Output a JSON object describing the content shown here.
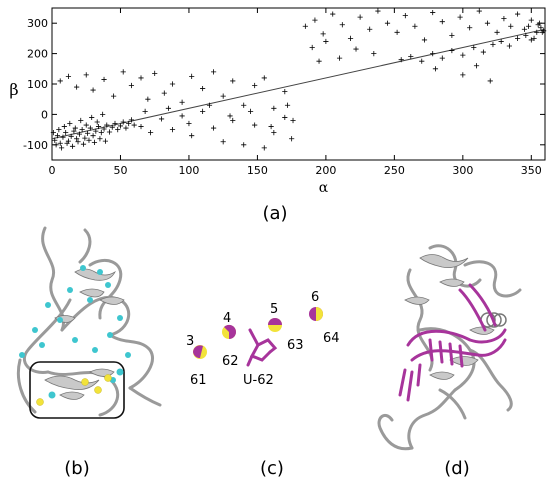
{
  "figure": {
    "panel_labels": [
      "(a)",
      "(b)",
      "(c)",
      "(d)"
    ]
  },
  "chart_data": {
    "type": "scatter",
    "xlabel": "α",
    "ylabel": "β",
    "xlim": [
      0,
      360
    ],
    "ylim": [
      -150,
      350
    ],
    "xticks": [
      0,
      50,
      100,
      150,
      200,
      250,
      300,
      350
    ],
    "yticks": [
      -100,
      0,
      100,
      200,
      300
    ],
    "grid": false,
    "fit_line": {
      "x": [
        0,
        360
      ],
      "y": [
        -80,
        280
      ]
    },
    "series": [
      {
        "marker": "+",
        "color": "#000000",
        "points": [
          [
            2,
            -85
          ],
          [
            4,
            -70
          ],
          [
            6,
            -95
          ],
          [
            8,
            -75
          ],
          [
            10,
            -60
          ],
          [
            12,
            -88
          ],
          [
            14,
            -72
          ],
          [
            16,
            -55
          ],
          [
            18,
            -80
          ],
          [
            20,
            -65
          ],
          [
            22,
            -50
          ],
          [
            24,
            -78
          ],
          [
            26,
            -62
          ],
          [
            28,
            -45
          ],
          [
            30,
            -70
          ],
          [
            32,
            -55
          ],
          [
            34,
            -40
          ],
          [
            36,
            -60
          ],
          [
            38,
            -48
          ],
          [
            40,
            -35
          ],
          [
            42,
            -58
          ],
          [
            44,
            -42
          ],
          [
            46,
            -30
          ],
          [
            48,
            -50
          ],
          [
            50,
            -38
          ],
          [
            52,
            -25
          ],
          [
            54,
            -45
          ],
          [
            56,
            -30
          ],
          [
            58,
            -18
          ],
          [
            60,
            -35
          ],
          [
            3,
            -100
          ],
          [
            7,
            -110
          ],
          [
            11,
            -95
          ],
          [
            15,
            -105
          ],
          [
            19,
            -90
          ],
          [
            23,
            -98
          ],
          [
            27,
            -85
          ],
          [
            31,
            -92
          ],
          [
            35,
            -80
          ],
          [
            39,
            -88
          ],
          [
            1,
            -60
          ],
          [
            5,
            -50
          ],
          [
            9,
            -40
          ],
          [
            13,
            -30
          ],
          [
            17,
            -45
          ],
          [
            21,
            -20
          ],
          [
            25,
            -35
          ],
          [
            29,
            -10
          ],
          [
            33,
            -25
          ],
          [
            37,
            0
          ],
          [
            6,
            110
          ],
          [
            12,
            125
          ],
          [
            18,
            90
          ],
          [
            25,
            130
          ],
          [
            30,
            80
          ],
          [
            38,
            115
          ],
          [
            45,
            60
          ],
          [
            52,
            140
          ],
          [
            58,
            95
          ],
          [
            65,
            120
          ],
          [
            70,
            50
          ],
          [
            75,
            135
          ],
          [
            82,
            70
          ],
          [
            88,
            100
          ],
          [
            95,
            40
          ],
          [
            102,
            125
          ],
          [
            110,
            85
          ],
          [
            118,
            140
          ],
          [
            125,
            60
          ],
          [
            132,
            110
          ],
          [
            140,
            30
          ],
          [
            148,
            95
          ],
          [
            155,
            120
          ],
          [
            162,
            20
          ],
          [
            170,
            75
          ],
          [
            176,
            -20
          ],
          [
            65,
            -40
          ],
          [
            72,
            -60
          ],
          [
            80,
            -15
          ],
          [
            88,
            -50
          ],
          [
            95,
            -5
          ],
          [
            102,
            -70
          ],
          [
            110,
            10
          ],
          [
            118,
            -45
          ],
          [
            125,
            -90
          ],
          [
            132,
            -20
          ],
          [
            140,
            -100
          ],
          [
            148,
            -35
          ],
          [
            155,
            -110
          ],
          [
            162,
            -60
          ],
          [
            170,
            -10
          ],
          [
            175,
            -80
          ],
          [
            68,
            10
          ],
          [
            85,
            20
          ],
          [
            100,
            -30
          ],
          [
            115,
            30
          ],
          [
            130,
            -5
          ],
          [
            145,
            10
          ],
          [
            160,
            -40
          ],
          [
            172,
            30
          ],
          [
            185,
            290
          ],
          [
            192,
            310
          ],
          [
            198,
            265
          ],
          [
            205,
            330
          ],
          [
            212,
            295
          ],
          [
            218,
            250
          ],
          [
            225,
            320
          ],
          [
            232,
            280
          ],
          [
            238,
            340
          ],
          [
            245,
            300
          ],
          [
            252,
            270
          ],
          [
            258,
            325
          ],
          [
            265,
            290
          ],
          [
            272,
            245
          ],
          [
            278,
            335
          ],
          [
            285,
            305
          ],
          [
            292,
            260
          ],
          [
            298,
            320
          ],
          [
            305,
            285
          ],
          [
            312,
            340
          ],
          [
            318,
            300
          ],
          [
            325,
            270
          ],
          [
            330,
            315
          ],
          [
            335,
            290
          ],
          [
            340,
            330
          ],
          [
            345,
            280
          ],
          [
            350,
            310
          ],
          [
            355,
            295
          ],
          [
            358,
            270
          ],
          [
            352,
            250
          ],
          [
            255,
            180
          ],
          [
            262,
            190
          ],
          [
            270,
            175
          ],
          [
            278,
            200
          ],
          [
            285,
            185
          ],
          [
            292,
            210
          ],
          [
            300,
            195
          ],
          [
            308,
            220
          ],
          [
            315,
            205
          ],
          [
            322,
            230
          ],
          [
            328,
            240
          ],
          [
            334,
            225
          ],
          [
            340,
            250
          ],
          [
            346,
            260
          ],
          [
            350,
            245
          ],
          [
            354,
            270
          ],
          [
            357,
            285
          ],
          [
            359,
            275
          ],
          [
            348,
            290
          ],
          [
            356,
            300
          ],
          [
            190,
            220
          ],
          [
            200,
            240
          ],
          [
            210,
            185
          ],
          [
            222,
            215
          ],
          [
            235,
            200
          ],
          [
            195,
            175
          ],
          [
            300,
            130
          ],
          [
            320,
            110
          ],
          [
            280,
            150
          ],
          [
            310,
            160
          ]
        ]
      }
    ]
  },
  "panel_c": {
    "labels": [
      {
        "id": "n3",
        "text": "3"
      },
      {
        "id": "n61",
        "text": "61"
      },
      {
        "id": "n4",
        "text": "4"
      },
      {
        "id": "n62",
        "text": "62"
      },
      {
        "id": "n5",
        "text": "5"
      },
      {
        "id": "n63",
        "text": "63"
      },
      {
        "id": "n6",
        "text": "6"
      },
      {
        "id": "n64",
        "text": "64"
      },
      {
        "id": "u62",
        "text": "U-62"
      }
    ]
  },
  "colors": {
    "ribbon": "#bdbdbd",
    "ribbon_dark": "#7a7a7a",
    "cyan": "#3ec6cf",
    "yellow": "#f2e33a",
    "magenta": "#a7349b"
  }
}
